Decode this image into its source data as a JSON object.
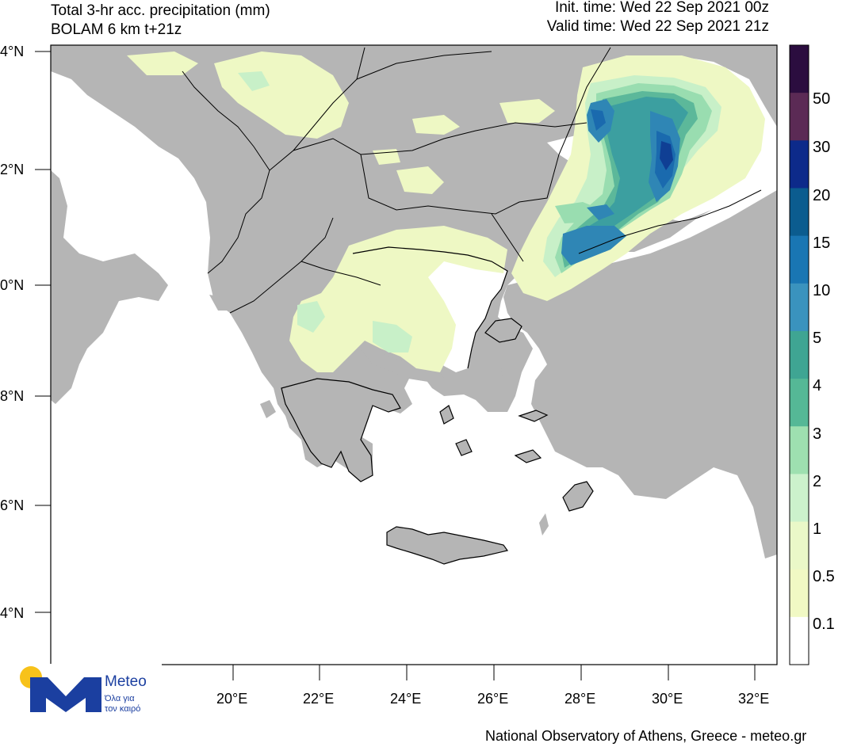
{
  "header": {
    "title_line1": "Total 3-hr acc. precipitation (mm)",
    "title_line2": "BOLAM 6 km t+21z",
    "init_time": "Init. time: Wed 22 Sep 2021 00z",
    "valid_time": "Valid time: Wed 22 Sep 2021 21z"
  },
  "axes": {
    "lat_labels": [
      "4°N",
      "2°N",
      "0°N",
      "8°N",
      "6°N",
      "4°N"
    ],
    "lon_labels": [
      "20°E",
      "22°E",
      "24°E",
      "26°E",
      "28°E",
      "30°E",
      "32°E"
    ]
  },
  "colorbar": {
    "labels": [
      "50",
      "30",
      "20",
      "15",
      "10",
      "5",
      "4",
      "3",
      "2",
      "1",
      "0.5",
      "0.1"
    ],
    "colors": [
      "#2b0d3f",
      "#5b2a55",
      "#0d2a8a",
      "#0b5c8f",
      "#1976b3",
      "#3a93be",
      "#3fa593",
      "#55b896",
      "#9ee0b0",
      "#ccf2cc",
      "#eaf8c8",
      "#f1f9c4",
      "#ffffff"
    ]
  },
  "map": {
    "land_color": "#b5b5b5",
    "sea_color": "#ffffff"
  },
  "footer": {
    "credit": "National Observatory of Athens, Greece - meteo.gr"
  },
  "logo": {
    "name": "Meteo",
    "tagline1": "Όλα για",
    "tagline2": "τον καιρό",
    "brand_color": "#1b3fa0",
    "sun_color": "#f7c21a"
  }
}
